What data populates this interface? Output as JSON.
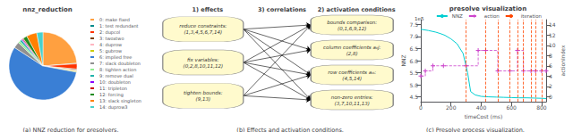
{
  "chart_data": [
    {
      "type": "pie",
      "title": "nnz_reduction",
      "annotations": [
        "(a) NNZ reduction for presolvers."
      ],
      "categories": [
        "0: make fixed",
        "1: test redundant",
        "2: dupcol",
        "3: twoxtwo",
        "4: duprow",
        "5: gubrow",
        "6: implied free",
        "7: slack doubleton",
        "8: tighten action",
        "9: remove dual",
        "10: doubleton",
        "11: tripleton",
        "12: forcing",
        "13: slack singleton",
        "14: duprow3"
      ],
      "values": [
        24,
        0.3,
        2.5,
        0.5,
        0.5,
        0.5,
        57,
        3,
        1,
        1,
        0.5,
        0.5,
        2,
        5,
        3
      ],
      "colors": [
        "#FFA040",
        "#008B8B",
        "#FF3300",
        "#7B3F00",
        "#FFB6C1",
        "#CCCC00",
        "#3A7FD5",
        "#909090",
        "#90EE90",
        "#20B2AA",
        "#8B00FF",
        "#CC0000",
        "#228B22",
        "#FF8000",
        "#48D1CC"
      ],
      "legend": "right"
    },
    {
      "type": "diagram",
      "title": "3) correlations",
      "annotations": [
        "(b) Effects and activation conditions."
      ],
      "color": "#FFFACD",
      "series": [
        {
          "name": "1) effects",
          "values": [
            "reduce constraints:\n(1,3,4,5,6,7,14)",
            "fix variables:\n(0,2,8,10,11,12)",
            "tighten bounds:\n(9,13)"
          ]
        },
        {
          "name": "2) activation conditions",
          "values": [
            "bounds comparison:\n(0,1,6,9,12)",
            "column coefficients a₀j:\n(2,8)",
            "row coefficients aᵢ₀:\n(4,5,14)",
            "non-zero entries:\n(3,7,10,11,13)"
          ]
        }
      ],
      "connections": [
        [
          0,
          0
        ],
        [
          0,
          1
        ],
        [
          0,
          2
        ],
        [
          0,
          3
        ],
        [
          1,
          0
        ],
        [
          1,
          1
        ],
        [
          1,
          2
        ],
        [
          1,
          3
        ],
        [
          2,
          0
        ],
        [
          2,
          2
        ],
        [
          2,
          3
        ]
      ]
    },
    {
      "type": "line",
      "title": "presolve visualization",
      "xlabel": "timeCost (ms)",
      "ylabel": "NNZ",
      "y2label": "actionIndex",
      "annotations": [
        "1e5",
        "(c) Presolve process visualization."
      ],
      "xlim": [
        0,
        830
      ],
      "xticks": [
        0,
        200,
        400,
        600,
        800
      ],
      "ylim": [
        4.3,
        7.7
      ],
      "yticks": [
        4.5,
        {
          "value": 5,
          "label": "5.0"
        },
        5.5,
        {
          "value": 6,
          "label": "6.0"
        },
        6.5,
        {
          "value": 7,
          "label": "7.0"
        },
        7.5
      ],
      "y2lim": [
        -1,
        15
      ],
      "y2ticks": [
        0,
        2,
        4,
        6,
        8,
        10,
        12,
        14
      ],
      "grid": false,
      "legend": "upper right",
      "series": [
        {
          "name": "NNZ",
          "color": "#00CED1",
          "x": [
            0,
            50,
            100,
            130,
            160,
            200,
            240,
            280,
            310,
            330,
            360,
            400,
            450,
            500,
            550,
            600,
            650,
            700,
            750,
            800,
            830
          ],
          "values": [
            7.3,
            7.25,
            7.18,
            7.12,
            7.05,
            6.9,
            6.7,
            6.3,
            5.5,
            4.72,
            4.58,
            4.52,
            4.5,
            4.49,
            4.48,
            4.47,
            4.46,
            4.46,
            4.45,
            4.44,
            4.43
          ]
        },
        {
          "name": "action",
          "type": "step",
          "axis": "y2",
          "color": "#CC44CC",
          "line_style": "dashed",
          "marker": "plus",
          "x": [
            0,
            30,
            80,
            150,
            300,
            380,
            430,
            510,
            590,
            640,
            680,
            730,
            760,
            800,
            830
          ],
          "values": [
            4,
            5,
            6,
            6,
            6,
            9,
            9,
            5,
            5,
            9,
            5,
            5,
            5,
            5,
            5
          ]
        },
        {
          "name": "iteration",
          "type": "vline",
          "axis": "y2",
          "color": "#FF4500",
          "line_style": "dashed",
          "x": [
            300,
            430,
            510,
            590,
            640,
            680,
            730,
            760,
            800
          ]
        }
      ]
    }
  ]
}
